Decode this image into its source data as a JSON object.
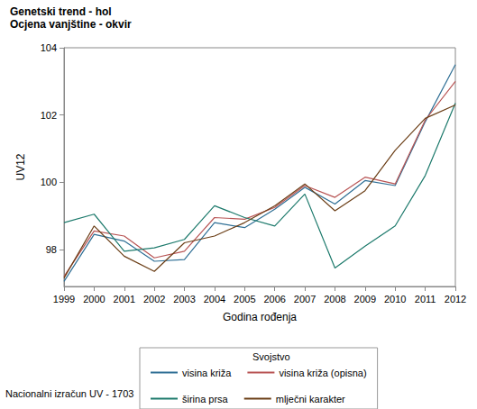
{
  "chart_data": {
    "type": "line",
    "title": "Genetski trend - hol",
    "subtitle": "Ocjena vanjštine - okvir",
    "x_label": "Godina rođenja",
    "y_label": "UV12",
    "legend_title": "Svojstvo",
    "annotations": [
      "Nacionalni izračun UV - 1703"
    ],
    "categories": [
      "1999",
      "2000",
      "2001",
      "2002",
      "2003",
      "2004",
      "2005",
      "2006",
      "2007",
      "2008",
      "2009",
      "2010",
      "2011",
      "2012"
    ],
    "series": [
      {
        "name": "visina križa",
        "color": "#2f6f95",
        "values": [
          97.05,
          98.45,
          98.25,
          97.65,
          97.7,
          98.8,
          98.65,
          99.2,
          99.85,
          99.35,
          100.05,
          99.9,
          101.8,
          103.5
        ]
      },
      {
        "name": "visina križa (opisna)",
        "color": "#b85454",
        "values": [
          97.2,
          98.55,
          98.4,
          97.75,
          97.95,
          98.95,
          98.9,
          99.25,
          99.9,
          99.55,
          100.15,
          99.95,
          101.85,
          103.0
        ]
      },
      {
        "name": "širina prsa",
        "color": "#1d7a6c",
        "values": [
          98.8,
          99.05,
          97.95,
          98.05,
          98.3,
          99.3,
          98.95,
          98.7,
          99.65,
          97.45,
          98.1,
          98.7,
          100.2,
          102.35
        ]
      },
      {
        "name": "mlječni karakter",
        "color": "#6b3e16",
        "values": [
          97.15,
          98.7,
          97.8,
          97.35,
          98.2,
          98.4,
          98.8,
          99.3,
          99.95,
          99.15,
          99.75,
          100.95,
          101.9,
          102.3
        ]
      }
    ],
    "ylim": [
      96.9,
      104
    ],
    "yticks": [
      98,
      100,
      102,
      104
    ],
    "grid": false,
    "legend": "bottom",
    "marker": "none"
  }
}
